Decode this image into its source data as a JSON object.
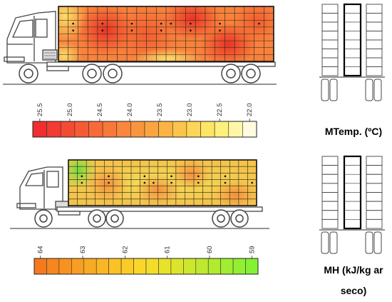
{
  "temperature_panel": {
    "title": "MTemp. (ºC)",
    "scale": {
      "tick_labels": [
        "25.5",
        "25.0",
        "24.5",
        "24.0",
        "23.5",
        "23.0",
        "22.5",
        "22.0"
      ],
      "colors": [
        "#ef2f2f",
        "#f23b32",
        "#f44a33",
        "#f65a35",
        "#f76a37",
        "#f8783a",
        "#f9873c",
        "#f9953e",
        "#fba441",
        "#fbb345",
        "#fcc44c",
        "#fdd657",
        "#fde666",
        "#fef07d",
        "#fff6a8",
        "#fffbe0"
      ]
    },
    "points": [
      {
        "row": 1,
        "col": 1
      },
      {
        "row": 2,
        "col": 1
      },
      {
        "row": 1,
        "col": 4
      },
      {
        "row": 2,
        "col": 4
      },
      {
        "row": 1,
        "col": 7
      },
      {
        "row": 2,
        "col": 7
      },
      {
        "row": 1,
        "col": 10
      },
      {
        "row": 2,
        "col": 10
      },
      {
        "row": 1,
        "col": 13
      },
      {
        "row": 2,
        "col": 13
      },
      {
        "row": 1,
        "col": 16
      },
      {
        "row": 2,
        "col": 16
      },
      {
        "row": 1,
        "col": 11
      },
      {
        "row": 1,
        "col": 20
      }
    ]
  },
  "humidity_panel": {
    "title_line1": "MH (kJ/kg ar",
    "title_line2": "seco)",
    "scale": {
      "tick_labels": [
        "64",
        "63",
        "62",
        "61",
        "60",
        "59"
      ],
      "colors": [
        "#f57a1e",
        "#f6861f",
        "#f79221",
        "#f89e22",
        "#f9aa23",
        "#f9b625",
        "#fac226",
        "#fbcc28",
        "#fad629",
        "#f3dd2a",
        "#e9e22b",
        "#dbe52c",
        "#cde72d",
        "#bee92e",
        "#b0eb30",
        "#a1ed31",
        "#92ef32",
        "#84f134"
      ]
    },
    "points": [
      {
        "row": 1,
        "col": 1
      },
      {
        "row": 2,
        "col": 1
      },
      {
        "row": 1,
        "col": 4
      },
      {
        "row": 2,
        "col": 4
      },
      {
        "row": 1,
        "col": 8
      },
      {
        "row": 2,
        "col": 8
      },
      {
        "row": 1,
        "col": 11
      },
      {
        "row": 2,
        "col": 11
      },
      {
        "row": 1,
        "col": 14
      },
      {
        "row": 2,
        "col": 14
      },
      {
        "row": 1,
        "col": 17
      },
      {
        "row": 2,
        "col": 17
      },
      {
        "row": 2,
        "col": 9
      },
      {
        "row": 2,
        "col": 20
      }
    ]
  }
}
